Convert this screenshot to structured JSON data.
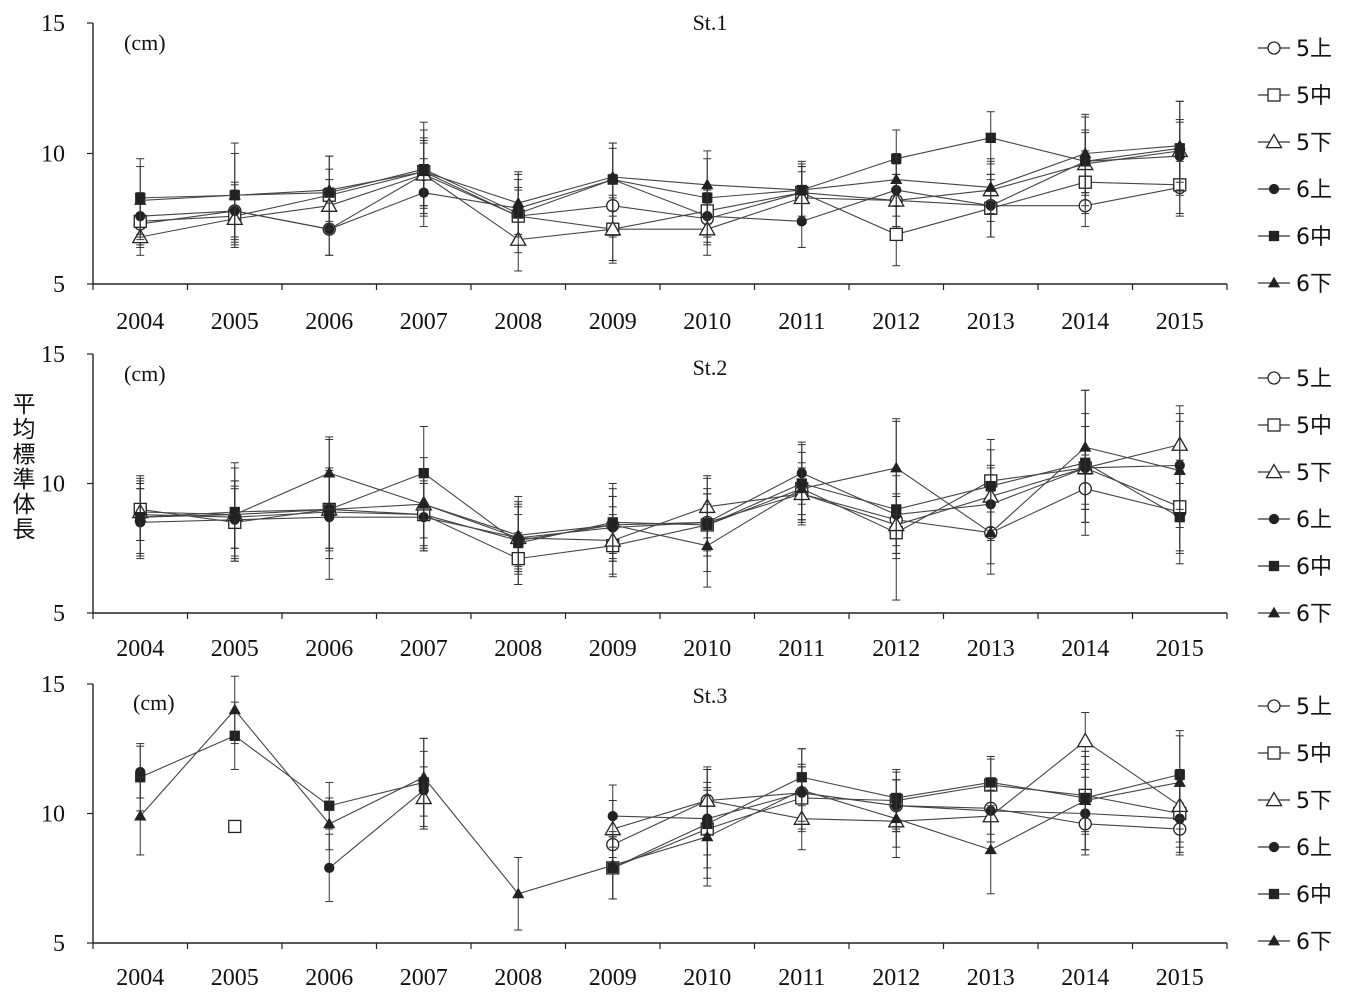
{
  "ylabel": "平均標準体長",
  "legend": [
    {
      "label": "5上",
      "marker": "circle-open"
    },
    {
      "label": "5中",
      "marker": "square-open"
    },
    {
      "label": "5下",
      "marker": "triangle-open"
    },
    {
      "label": "6上",
      "marker": "circle-filled"
    },
    {
      "label": "6中",
      "marker": "square-filled"
    },
    {
      "label": "6下",
      "marker": "triangle-filled"
    }
  ],
  "chart_data": [
    {
      "type": "line",
      "title": "St.1",
      "unit_label": "(cm)",
      "categories": [
        "2004",
        "2005",
        "2006",
        "2007",
        "2008",
        "2009",
        "2010",
        "2011",
        "2012",
        "2013",
        "2014",
        "2015"
      ],
      "ylim": [
        5,
        15
      ],
      "yticks": [
        "5",
        "10",
        "15"
      ],
      "grid": false,
      "legend_position": "right",
      "series": [
        {
          "name": "5上",
          "values": [
            7.3,
            7.8,
            7.1,
            9.2,
            7.6,
            8.0,
            7.5,
            8.5,
            8.2,
            8.0,
            8.0,
            8.7
          ],
          "err": [
            0.9,
            1.0,
            1.0,
            1.2,
            1.0,
            1.2,
            1.0,
            1.0,
            1.0,
            1.2,
            0.8,
            1.0
          ]
        },
        {
          "name": "5中",
          "values": [
            7.4,
            7.6,
            8.4,
            9.3,
            7.6,
            7.1,
            7.8,
            8.5,
            6.9,
            7.9,
            8.9,
            8.8
          ],
          "err": [
            0.9,
            1.0,
            1.0,
            1.3,
            1.1,
            1.2,
            1.0,
            1.0,
            1.2,
            1.1,
            1.2,
            1.2
          ]
        },
        {
          "name": "5下",
          "values": [
            6.8,
            7.5,
            8.0,
            9.2,
            6.7,
            7.1,
            7.1,
            8.3,
            8.2,
            8.6,
            9.6,
            10.1
          ],
          "err": [
            0.7,
            1.0,
            1.0,
            1.3,
            1.2,
            1.3,
            1.0,
            1.0,
            1.0,
            1.2,
            1.2,
            1.2
          ]
        },
        {
          "name": "6上",
          "values": [
            7.6,
            7.8,
            7.1,
            8.5,
            7.9,
            9.0,
            7.6,
            7.4,
            8.6,
            8.0,
            9.7,
            9.9
          ],
          "err": [
            0.9,
            1.1,
            1.0,
            1.3,
            1.1,
            1.2,
            1.0,
            1.0,
            1.0,
            1.2,
            1.2,
            1.3
          ]
        },
        {
          "name": "6中",
          "values": [
            8.3,
            8.4,
            8.5,
            9.4,
            7.7,
            9.0,
            8.3,
            8.6,
            9.8,
            10.6,
            9.7,
            10.2
          ],
          "err": [
            1.5,
            2.0,
            1.4,
            1.8,
            1.5,
            1.4,
            1.5,
            1.1,
            1.1,
            1.0,
            1.7,
            1.8
          ]
        },
        {
          "name": "6下",
          "values": [
            8.2,
            8.4,
            8.6,
            9.3,
            8.1,
            9.1,
            8.8,
            8.6,
            9.0,
            8.7,
            10.0,
            10.3
          ],
          "err": [
            1.3,
            1.6,
            1.3,
            1.6,
            1.2,
            1.3,
            1.3,
            1.0,
            1.0,
            1.0,
            1.5,
            1.7
          ]
        }
      ]
    },
    {
      "type": "line",
      "title": "St.2",
      "unit_label": "(cm)",
      "categories": [
        "2004",
        "2005",
        "2006",
        "2007",
        "2008",
        "2009",
        "2010",
        "2011",
        "2012",
        "2013",
        "2014",
        "2015"
      ],
      "ylim": [
        5,
        15
      ],
      "yticks": [
        "5",
        "10",
        "15"
      ],
      "grid": false,
      "legend_position": "right",
      "series": [
        {
          "name": "5上",
          "values": [
            8.8,
            8.7,
            8.9,
            8.8,
            7.8,
            8.4,
            8.5,
            9.6,
            8.6,
            8.1,
            9.8,
            8.9
          ],
          "err": [
            1.0,
            1.2,
            1.4,
            1.2,
            1.0,
            1.1,
            1.1,
            1.0,
            1.0,
            1.2,
            1.3,
            1.5
          ]
        },
        {
          "name": "5中",
          "values": [
            9.0,
            8.5,
            9.0,
            8.8,
            7.1,
            7.6,
            8.4,
            9.8,
            8.1,
            10.1,
            10.6,
            9.1
          ],
          "err": [
            1.2,
            1.3,
            1.6,
            1.3,
            1.0,
            1.2,
            1.2,
            1.0,
            1.0,
            1.2,
            1.6,
            1.8
          ]
        },
        {
          "name": "5下",
          "values": [
            8.9,
            8.8,
            9.0,
            9.2,
            7.9,
            7.8,
            9.1,
            9.6,
            8.4,
            9.5,
            10.6,
            11.5
          ],
          "err": [
            1.1,
            1.3,
            1.5,
            1.3,
            1.2,
            1.3,
            1.2,
            1.0,
            1.1,
            1.2,
            1.6,
            1.5
          ]
        },
        {
          "name": "6上",
          "values": [
            8.5,
            8.6,
            8.7,
            8.7,
            7.9,
            8.3,
            8.5,
            10.4,
            8.8,
            9.2,
            10.6,
            10.7
          ],
          "err": [
            1.3,
            1.5,
            1.6,
            1.3,
            1.3,
            1.2,
            1.3,
            1.2,
            1.5,
            1.4,
            2.1,
            1.7
          ]
        },
        {
          "name": "6中",
          "values": [
            8.7,
            8.9,
            9.0,
            10.4,
            7.7,
            8.5,
            8.4,
            10.0,
            9.0,
            9.9,
            10.8,
            8.7
          ],
          "err": [
            1.6,
            1.9,
            2.7,
            1.8,
            1.6,
            1.5,
            1.8,
            1.5,
            3.5,
            1.8,
            2.8,
            1.8
          ]
        },
        {
          "name": "6下",
          "values": [
            8.7,
            8.8,
            10.4,
            9.2,
            8.0,
            8.4,
            7.6,
            9.8,
            10.6,
            8.1,
            11.4,
            10.5
          ],
          "err": [
            1.4,
            1.8,
            1.4,
            1.8,
            1.5,
            1.4,
            1.6,
            1.4,
            1.8,
            1.6,
            2.2,
            2.2
          ]
        }
      ]
    },
    {
      "type": "line",
      "title": "St.3",
      "unit_label": "(cm)",
      "categories": [
        "2004",
        "2005",
        "2006",
        "2007",
        "2008",
        "2009",
        "2010",
        "2011",
        "2012",
        "2013",
        "2014",
        "2015"
      ],
      "ylim": [
        5,
        15
      ],
      "yticks": [
        "5",
        "10",
        "15"
      ],
      "grid": false,
      "legend_position": "right",
      "series": [
        {
          "name": "5上",
          "values": [
            null,
            null,
            null,
            null,
            null,
            8.8,
            10.5,
            10.8,
            10.3,
            10.2,
            9.6,
            9.4
          ],
          "err": [
            0,
            0,
            0,
            0,
            0,
            1.0,
            1.2,
            1.0,
            1.0,
            1.0,
            1.2,
            1.0
          ]
        },
        {
          "name": "5中",
          "values": [
            null,
            9.5,
            null,
            null,
            null,
            7.9,
            9.4,
            10.6,
            10.5,
            11.1,
            10.7,
            10.0
          ],
          "err": [
            0,
            0,
            0,
            0,
            0,
            1.2,
            1.5,
            1.2,
            1.1,
            1.0,
            1.5,
            1.3
          ]
        },
        {
          "name": "5下",
          "values": [
            null,
            null,
            null,
            10.6,
            null,
            9.4,
            10.5,
            9.8,
            9.7,
            9.9,
            12.8,
            10.3
          ],
          "err": [
            0,
            0,
            0,
            1.2,
            0,
            1.1,
            1.3,
            1.2,
            1.0,
            1.0,
            1.1,
            1.4
          ]
        },
        {
          "name": "6上",
          "values": [
            11.6,
            null,
            7.9,
            10.9,
            null,
            9.9,
            9.8,
            10.8,
            10.3,
            10.1,
            10.0,
            9.8
          ],
          "err": [
            1.0,
            0,
            1.3,
            1.5,
            0,
            1.2,
            1.4,
            1.1,
            1.0,
            1.2,
            1.4,
            1.3
          ]
        },
        {
          "name": "6中",
          "values": [
            11.4,
            13.0,
            10.3,
            11.2,
            null,
            7.9,
            9.6,
            11.4,
            10.6,
            11.2,
            10.6,
            11.5
          ],
          "err": [
            1.3,
            1.3,
            0.9,
            1.7,
            0,
            1.2,
            2.1,
            1.1,
            1.1,
            1.0,
            1.3,
            1.7
          ]
        },
        {
          "name": "6下",
          "values": [
            9.9,
            14.0,
            9.6,
            11.4,
            6.9,
            8.0,
            9.1,
            10.9,
            9.8,
            8.6,
            10.5,
            11.2
          ],
          "err": [
            1.5,
            1.3,
            1.0,
            1.5,
            1.4,
            1.3,
            1.9,
            1.6,
            1.5,
            1.7,
            1.9,
            1.8
          ]
        }
      ]
    }
  ]
}
